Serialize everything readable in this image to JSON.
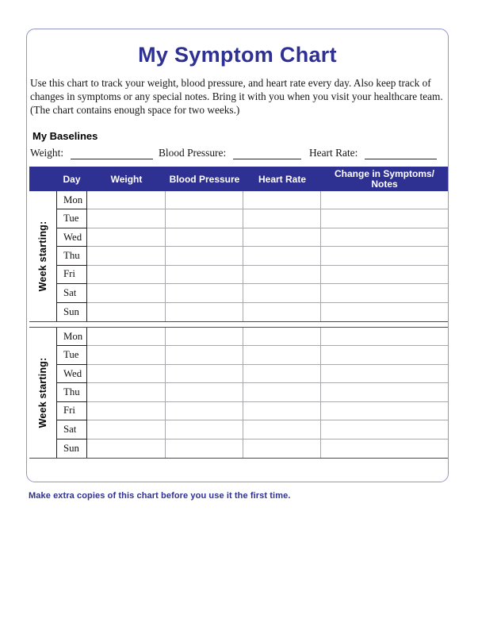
{
  "document": {
    "title": "My Symptom Chart",
    "intro_lines": [
      "Use this chart to track your weight, blood pressure, and heart rate every day. Also keep track of",
      "changes in symptoms or any special notes. Bring it with you when you visit your healthcare team.",
      "(The chart contains enough space for two weeks.)"
    ],
    "footer_note": "Make extra copies of this chart before you use it the first time."
  },
  "baselines": {
    "heading": "My Baselines",
    "fields": [
      {
        "label": "Weight:",
        "value": ""
      },
      {
        "label": "Blood Pressure:",
        "value": ""
      },
      {
        "label": "Heart Rate:",
        "value": ""
      }
    ]
  },
  "table": {
    "headers": {
      "day": "Day",
      "weight": "Weight",
      "blood_pressure": "Blood Pressure",
      "heart_rate": "Heart Rate",
      "change": "Change in Symptoms/\nNotes"
    },
    "weeks": [
      {
        "label": "Week starting:",
        "days": [
          "Mon",
          "Tue",
          "Wed",
          "Thu",
          "Fri",
          "Sat",
          "Sun"
        ]
      },
      {
        "label": "Week starting:",
        "days": [
          "Mon",
          "Tue",
          "Wed",
          "Thu",
          "Fri",
          "Sat",
          "Sun"
        ]
      }
    ]
  },
  "colors": {
    "accent": "#2E3192",
    "header_bg": "#2E3192",
    "box_border": "#9397C6",
    "grid_gray": "#A7A9AC",
    "grid_dark": "#4A4A4C",
    "day_border": "#231F20"
  }
}
